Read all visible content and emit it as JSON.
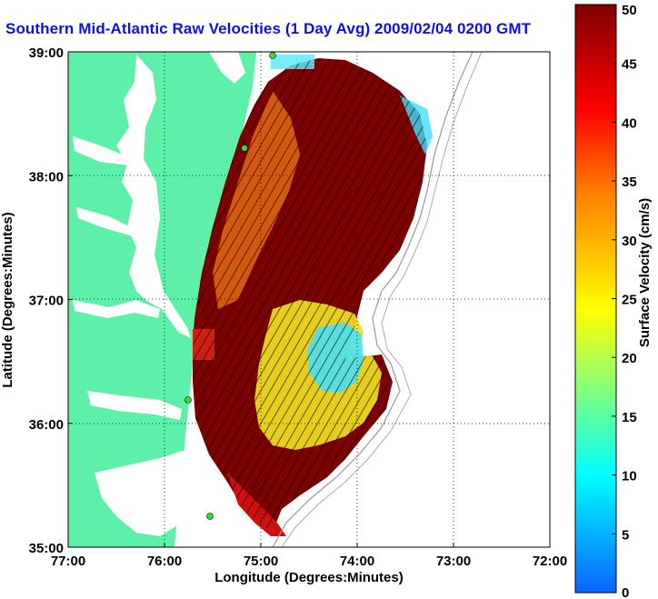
{
  "title": "Southern Mid-Atlantic Raw Velocities (1 Day Avg) 2009/02/04 0200 GMT",
  "xlabel": "Longitude (Degrees:Minutes)",
  "ylabel": "Latitude (Degrees:Minutes)",
  "x_ticks": [
    "77:00",
    "76:00",
    "75:00",
    "74:00",
    "73:00",
    "72:00"
  ],
  "y_ticks": [
    "39:00",
    "38:00",
    "37:00",
    "36:00",
    "35:00"
  ],
  "colorbar": {
    "label": "Surface Velocity (cm/s)",
    "ticks": [
      "50",
      "45",
      "40",
      "35",
      "30",
      "25",
      "20",
      "15",
      "10",
      "5",
      "0"
    ],
    "range": [
      0,
      50
    ],
    "colors": [
      "#0a64ff",
      "#00ffff",
      "#ffff00",
      "#ff8000",
      "#ff0000",
      "#800000"
    ]
  },
  "map": {
    "land_color": "#5ef0a8",
    "water_color": "#ffffff",
    "xlim_deg_west": [
      77,
      72
    ],
    "ylim_deg_north": [
      35,
      39
    ]
  }
}
